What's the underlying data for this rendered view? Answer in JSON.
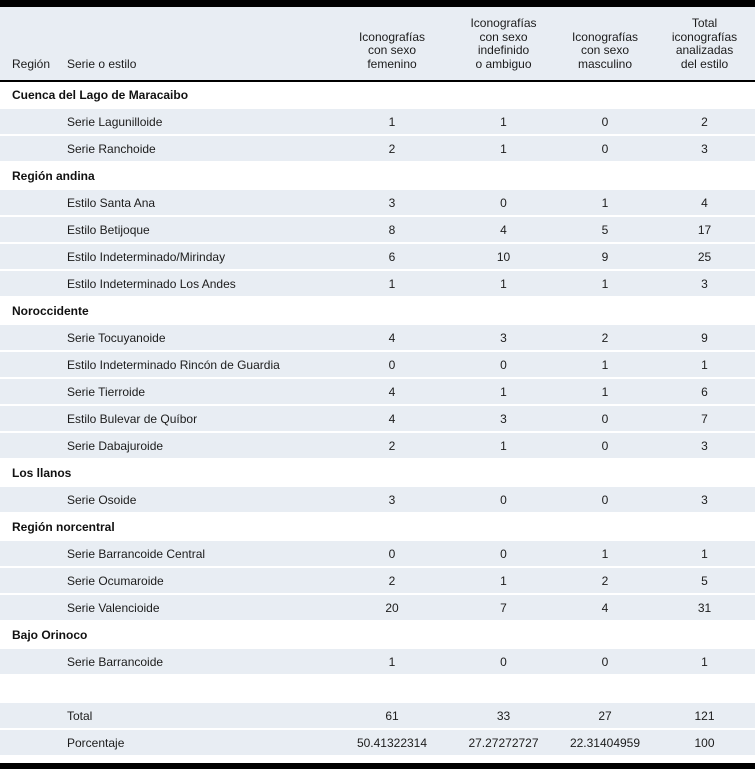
{
  "table": {
    "columns": [
      "Región",
      "Serie o estilo",
      "Iconografías\ncon sexo\nfemenino",
      "Iconografías\ncon sexo\nindefinido\no ambiguo",
      "Iconografías\ncon sexo\nmasculino",
      "Total\niconografías\nanalizadas\ndel estilo"
    ],
    "rows": [
      {
        "type": "region",
        "label": "Cuenca del Lago de Maracaibo"
      },
      {
        "type": "data",
        "label": "Serie Lagunilloide",
        "values": [
          "1",
          "1",
          "0",
          "2"
        ]
      },
      {
        "type": "data",
        "label": "Serie Ranchoide",
        "values": [
          "2",
          "1",
          "0",
          "3"
        ]
      },
      {
        "type": "region",
        "label": "Región andina"
      },
      {
        "type": "data",
        "label": "Estilo Santa Ana",
        "values": [
          "3",
          "0",
          "1",
          "4"
        ]
      },
      {
        "type": "data",
        "label": "Estilo Betijoque",
        "values": [
          "8",
          "4",
          "5",
          "17"
        ]
      },
      {
        "type": "data",
        "label": "Estilo Indeterminado/Mirinday",
        "values": [
          "6",
          "10",
          "9",
          "25"
        ]
      },
      {
        "type": "data",
        "label": "Estilo Indeterminado Los Andes",
        "values": [
          "1",
          "1",
          "1",
          "3"
        ]
      },
      {
        "type": "region",
        "label": "Noroccidente"
      },
      {
        "type": "data",
        "label": "Serie Tocuyanoide",
        "values": [
          "4",
          "3",
          "2",
          "9"
        ]
      },
      {
        "type": "data",
        "label": "Estilo Indeterminado Rincón de Guardia",
        "values": [
          "0",
          "0",
          "1",
          "1"
        ]
      },
      {
        "type": "data",
        "label": "Serie Tierroide",
        "values": [
          "4",
          "1",
          "1",
          "6"
        ]
      },
      {
        "type": "data",
        "label": "Estilo Bulevar de Quíbor",
        "values": [
          "4",
          "3",
          "0",
          "7"
        ]
      },
      {
        "type": "data",
        "label": "Serie Dabajuroide",
        "values": [
          "2",
          "1",
          "0",
          "3"
        ]
      },
      {
        "type": "region",
        "label": "Los llanos"
      },
      {
        "type": "data",
        "label": "Serie Osoide",
        "values": [
          "3",
          "0",
          "0",
          "3"
        ]
      },
      {
        "type": "region",
        "label": "Región norcentral"
      },
      {
        "type": "data",
        "label": "Serie Barrancoide Central",
        "values": [
          "0",
          "0",
          "1",
          "1"
        ]
      },
      {
        "type": "data",
        "label": "Serie Ocumaroide",
        "values": [
          "2",
          "1",
          "2",
          "5"
        ]
      },
      {
        "type": "data",
        "label": "Serie Valencioide",
        "values": [
          "20",
          "7",
          "4",
          "31"
        ]
      },
      {
        "type": "region",
        "label": "Bajo Orinoco"
      },
      {
        "type": "data",
        "label": "Serie Barrancoide",
        "values": [
          "1",
          "0",
          "0",
          "1"
        ]
      },
      {
        "type": "spacer",
        "label": ""
      },
      {
        "type": "total",
        "label": "Total",
        "values": [
          "61",
          "33",
          "27",
          "121"
        ]
      },
      {
        "type": "total",
        "label": "Porcentaje",
        "values": [
          "50.41322314",
          "27.27272727",
          "22.31404959",
          "100"
        ]
      }
    ]
  },
  "colors": {
    "stripe": "#e8edf3",
    "rule": "#000000"
  }
}
